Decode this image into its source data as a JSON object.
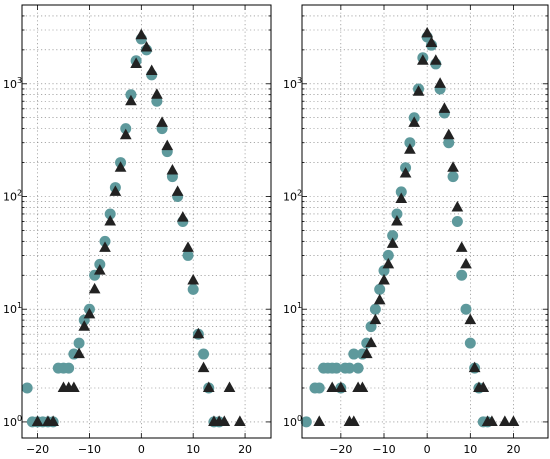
{
  "chart_data": [
    {
      "type": "scatter",
      "title": "",
      "xlabel": "",
      "ylabel": "",
      "xlim": [
        -23,
        25
      ],
      "ylim": [
        0.72,
        5000
      ],
      "yscale": "log",
      "grid": true,
      "legend": "none",
      "x_ticks": [
        -20,
        -10,
        0,
        10,
        20
      ],
      "x_tick_labels": [
        "−20",
        "−10",
        "0",
        "10",
        "20"
      ],
      "y_ticks": [
        1,
        10,
        100,
        1000
      ],
      "y_tick_labels": [
        [
          "10",
          "0"
        ],
        [
          "10",
          "1"
        ],
        [
          "10",
          "2"
        ],
        [
          "10",
          "3"
        ]
      ],
      "series": [
        {
          "marker": "circle",
          "color": "#5e999c",
          "points": [
            [
              -22,
              2
            ],
            [
              -21,
              1
            ],
            [
              -20,
              1
            ],
            [
              -19,
              1
            ],
            [
              -18,
              1
            ],
            [
              -17,
              1
            ],
            [
              -16,
              3
            ],
            [
              -15,
              3
            ],
            [
              -14,
              3
            ],
            [
              -13,
              4
            ],
            [
              -12,
              5
            ],
            [
              -11,
              8
            ],
            [
              -10,
              10
            ],
            [
              -9,
              20
            ],
            [
              -8,
              25
            ],
            [
              -7,
              40
            ],
            [
              -6,
              70
            ],
            [
              -5,
              120
            ],
            [
              -4,
              200
            ],
            [
              -3,
              400
            ],
            [
              -2,
              800
            ],
            [
              -1,
              1600
            ],
            [
              0,
              2500
            ],
            [
              1,
              2000
            ],
            [
              2,
              1200
            ],
            [
              3,
              700
            ],
            [
              4,
              400
            ],
            [
              5,
              250
            ],
            [
              6,
              150
            ],
            [
              7,
              100
            ],
            [
              8,
              60
            ],
            [
              9,
              30
            ],
            [
              10,
              15
            ],
            [
              11,
              6
            ],
            [
              12,
              4
            ],
            [
              13,
              2
            ],
            [
              14,
              1
            ],
            [
              15,
              1
            ]
          ]
        },
        {
          "marker": "triangle",
          "color": "#222222",
          "points": [
            [
              -20,
              1
            ],
            [
              -18,
              1
            ],
            [
              -17,
              1
            ],
            [
              -15,
              2
            ],
            [
              -14,
              2
            ],
            [
              -13,
              2
            ],
            [
              -12,
              4
            ],
            [
              -11,
              7
            ],
            [
              -10,
              9
            ],
            [
              -9,
              15
            ],
            [
              -8,
              22
            ],
            [
              -7,
              35
            ],
            [
              -6,
              60
            ],
            [
              -5,
              110
            ],
            [
              -4,
              180
            ],
            [
              -3,
              350
            ],
            [
              -2,
              700
            ],
            [
              -1,
              1500
            ],
            [
              0,
              2700
            ],
            [
              1,
              2100
            ],
            [
              2,
              1300
            ],
            [
              3,
              800
            ],
            [
              4,
              450
            ],
            [
              5,
              280
            ],
            [
              6,
              170
            ],
            [
              7,
              110
            ],
            [
              8,
              65
            ],
            [
              9,
              35
            ],
            [
              10,
              18
            ],
            [
              11,
              6
            ],
            [
              12,
              3
            ],
            [
              13,
              2
            ],
            [
              14,
              1
            ],
            [
              15,
              1
            ],
            [
              16,
              1
            ],
            [
              17,
              2
            ],
            [
              19,
              1
            ]
          ]
        }
      ]
    },
    {
      "type": "scatter",
      "title": "",
      "xlabel": "",
      "ylabel": "",
      "xlim": [
        -29,
        28
      ],
      "ylim": [
        0.72,
        5000
      ],
      "yscale": "log",
      "grid": true,
      "legend": "none",
      "x_ticks": [
        -20,
        -10,
        0,
        10,
        20
      ],
      "x_tick_labels": [
        "−20",
        "−10",
        "0",
        "10",
        "20"
      ],
      "y_ticks": [
        1,
        10,
        100,
        1000
      ],
      "y_tick_labels": [
        [
          "10",
          "0"
        ],
        [
          "10",
          "1"
        ],
        [
          "10",
          "2"
        ],
        [
          "10",
          "3"
        ]
      ],
      "series": [
        {
          "marker": "circle",
          "color": "#5e999c",
          "points": [
            [
              -28,
              1
            ],
            [
              -26,
              2
            ],
            [
              -25,
              2
            ],
            [
              -24,
              3
            ],
            [
              -23,
              3
            ],
            [
              -22,
              3
            ],
            [
              -21,
              3
            ],
            [
              -20,
              2
            ],
            [
              -19,
              3
            ],
            [
              -18,
              3
            ],
            [
              -17,
              4
            ],
            [
              -16,
              3
            ],
            [
              -15,
              4
            ],
            [
              -14,
              5
            ],
            [
              -13,
              7
            ],
            [
              -12,
              10
            ],
            [
              -11,
              15
            ],
            [
              -10,
              22
            ],
            [
              -9,
              30
            ],
            [
              -8,
              45
            ],
            [
              -7,
              70
            ],
            [
              -6,
              110
            ],
            [
              -5,
              180
            ],
            [
              -4,
              300
            ],
            [
              -3,
              500
            ],
            [
              -2,
              900
            ],
            [
              -1,
              1700
            ],
            [
              0,
              2600
            ],
            [
              1,
              2200
            ],
            [
              2,
              1500
            ],
            [
              3,
              900
            ],
            [
              4,
              550
            ],
            [
              5,
              300
            ],
            [
              6,
              150
            ],
            [
              7,
              60
            ],
            [
              8,
              20
            ],
            [
              9,
              10
            ],
            [
              10,
              5
            ],
            [
              11,
              3
            ],
            [
              12,
              2
            ],
            [
              13,
              1
            ],
            [
              14,
              1
            ]
          ]
        },
        {
          "marker": "triangle",
          "color": "#222222",
          "points": [
            [
              -25,
              1
            ],
            [
              -22,
              2
            ],
            [
              -20,
              2
            ],
            [
              -18,
              1
            ],
            [
              -17,
              1
            ],
            [
              -16,
              2
            ],
            [
              -15,
              2
            ],
            [
              -14,
              4
            ],
            [
              -13,
              5
            ],
            [
              -12,
              8
            ],
            [
              -11,
              12
            ],
            [
              -10,
              18
            ],
            [
              -9,
              25
            ],
            [
              -8,
              38
            ],
            [
              -7,
              60
            ],
            [
              -6,
              95
            ],
            [
              -5,
              160
            ],
            [
              -4,
              260
            ],
            [
              -3,
              450
            ],
            [
              -2,
              850
            ],
            [
              -1,
              1600
            ],
            [
              0,
              2800
            ],
            [
              1,
              2300
            ],
            [
              2,
              1600
            ],
            [
              3,
              1000
            ],
            [
              4,
              600
            ],
            [
              5,
              350
            ],
            [
              6,
              180
            ],
            [
              7,
              80
            ],
            [
              8,
              35
            ],
            [
              9,
              25
            ],
            [
              10,
              8
            ],
            [
              11,
              3
            ],
            [
              12,
              2
            ],
            [
              13,
              2
            ],
            [
              14,
              1
            ],
            [
              15,
              1
            ],
            [
              18,
              1
            ],
            [
              20,
              1
            ]
          ]
        }
      ]
    }
  ]
}
